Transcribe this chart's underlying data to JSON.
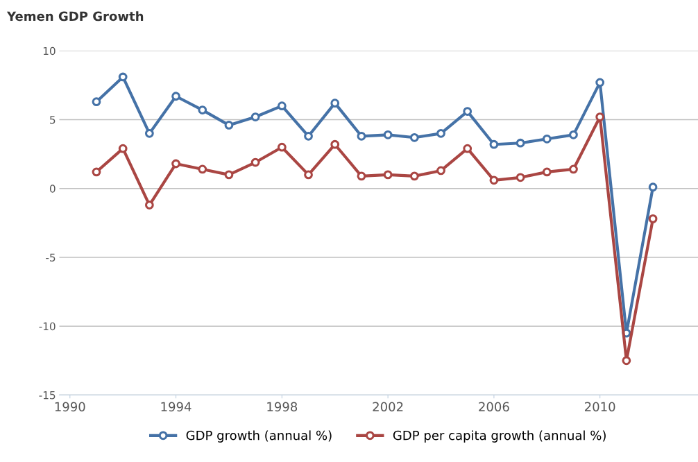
{
  "chart_data": {
    "type": "line",
    "title": "Yemen GDP Growth",
    "x": [
      1991,
      1992,
      1993,
      1994,
      1995,
      1996,
      1997,
      1998,
      1999,
      2000,
      2001,
      2002,
      2003,
      2004,
      2005,
      2006,
      2007,
      2008,
      2009,
      2010,
      2011,
      2012
    ],
    "series": [
      {
        "name": "GDP growth (annual %)",
        "color": "#4572a7",
        "values": [
          6.3,
          8.1,
          4.0,
          6.7,
          5.7,
          4.6,
          5.2,
          6.0,
          3.8,
          6.2,
          3.8,
          3.9,
          3.7,
          4.0,
          5.6,
          3.2,
          3.3,
          3.6,
          3.9,
          7.7,
          -10.5,
          0.1
        ]
      },
      {
        "name": "GDP per capita growth (annual %)",
        "color": "#aa4643",
        "values": [
          1.2,
          2.9,
          -1.2,
          1.8,
          1.4,
          1.0,
          1.9,
          3.0,
          1.0,
          3.2,
          0.9,
          1.0,
          0.9,
          1.3,
          2.9,
          0.6,
          0.8,
          1.2,
          1.4,
          5.2,
          -12.5,
          -2.2
        ]
      }
    ],
    "xlim": [
      1989.6,
      2013.7
    ],
    "xticks": [
      1990,
      1994,
      1998,
      2002,
      2006,
      2010
    ],
    "ylim": [
      -15,
      10
    ],
    "yticks": [
      -15,
      -10,
      -5,
      0,
      5,
      10
    ],
    "grid": "y",
    "legend": "bottom",
    "marker": "circle",
    "line_style": "solid"
  }
}
